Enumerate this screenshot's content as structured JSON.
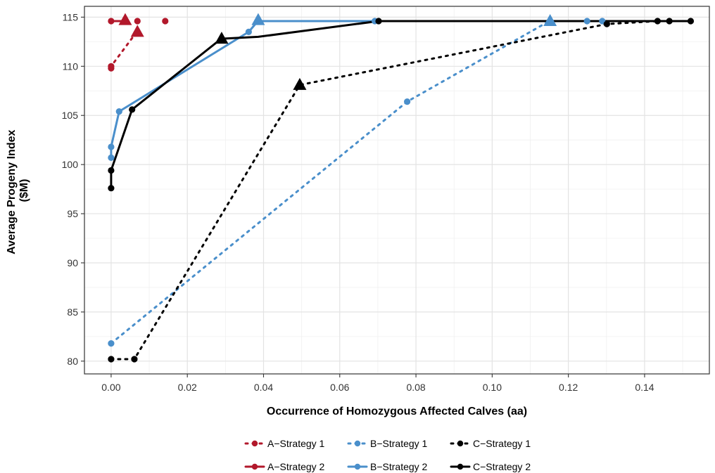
{
  "chart_data": {
    "type": "line",
    "xlabel": "Occurrence of Homozygous Affected Calves (aa)",
    "ylabel_line1": "Average Progeny Index",
    "ylabel_line2": "($M)",
    "xlim": [
      -0.007,
      0.157
    ],
    "ylim": [
      78.7,
      116.1
    ],
    "x_ticks": [
      0.0,
      0.02,
      0.04,
      0.06,
      0.08,
      0.1,
      0.12,
      0.14
    ],
    "x_tick_labels": [
      "0.00",
      "0.02",
      "0.04",
      "0.06",
      "0.08",
      "0.10",
      "0.12",
      "0.14"
    ],
    "y_ticks": [
      80,
      85,
      90,
      95,
      100,
      105,
      110,
      115
    ],
    "y_tick_labels": [
      "80",
      "85",
      "90",
      "95",
      "100",
      "105",
      "110",
      "115"
    ],
    "grid": true,
    "legend_position": "bottom",
    "series": [
      {
        "name": "A−Strategy 1",
        "color": "#b2182b",
        "dash": "dotted",
        "points": [
          [
            0.0,
            109.8
          ],
          [
            0.0,
            110.0
          ],
          [
            0.0038,
            114.6
          ],
          [
            0.0069,
            114.6
          ],
          [
            0.0142,
            114.6
          ]
        ],
        "path": [
          [
            0.0,
            109.8
          ],
          [
            0.0,
            110.0
          ],
          [
            0.0069,
            113.6
          ]
        ]
      },
      {
        "name": "A−Strategy 2",
        "color": "#b2182b",
        "dash": "solid",
        "points": [
          [
            0.0,
            114.6
          ],
          [
            0.0038,
            114.6
          ]
        ],
        "path": [
          [
            0.0,
            114.6
          ],
          [
            0.0038,
            114.6
          ]
        ]
      },
      {
        "name": "B−Strategy 1",
        "color": "#4a8fcb",
        "dash": "dotted",
        "points": [
          [
            0.0,
            81.8
          ],
          [
            0.0777,
            106.4
          ],
          [
            0.1249,
            114.6
          ],
          [
            0.1289,
            114.6
          ]
        ],
        "path": [
          [
            0.0,
            81.8
          ],
          [
            0.0777,
            106.4
          ],
          [
            0.115,
            114.6
          ],
          [
            0.1289,
            114.6
          ]
        ]
      },
      {
        "name": "B−Strategy 2",
        "color": "#4a8fcb",
        "dash": "solid",
        "points": [
          [
            0.0,
            100.7
          ],
          [
            0.0,
            101.8
          ],
          [
            0.0021,
            105.4
          ],
          [
            0.0361,
            113.5
          ],
          [
            0.0692,
            114.6
          ]
        ],
        "path": [
          [
            0.0,
            100.7
          ],
          [
            0.0,
            101.8
          ],
          [
            0.0021,
            105.4
          ],
          [
            0.0361,
            113.5
          ],
          [
            0.0385,
            114.6
          ],
          [
            0.0692,
            114.6
          ],
          [
            0.115,
            114.6
          ]
        ]
      },
      {
        "name": "C−Strategy 1",
        "color": "#000000",
        "dash": "dotted",
        "points": [
          [
            0.0,
            80.2
          ],
          [
            0.0061,
            80.2
          ],
          [
            0.1301,
            114.3
          ],
          [
            0.1434,
            114.6
          ],
          [
            0.1465,
            114.6
          ],
          [
            0.1521,
            114.6
          ]
        ],
        "path": [
          [
            0.0,
            80.2
          ],
          [
            0.0061,
            80.2
          ],
          [
            0.0495,
            108.1
          ],
          [
            0.1301,
            114.3
          ],
          [
            0.1434,
            114.6
          ],
          [
            0.1521,
            114.6
          ]
        ]
      },
      {
        "name": "C−Strategy 2",
        "color": "#000000",
        "dash": "solid",
        "points": [
          [
            0.0,
            97.6
          ],
          [
            0.0,
            99.4
          ],
          [
            0.0055,
            105.6
          ],
          [
            0.0702,
            114.6
          ]
        ],
        "path": [
          [
            0.0,
            97.6
          ],
          [
            0.0,
            99.4
          ],
          [
            0.0055,
            105.6
          ],
          [
            0.0289,
            112.8
          ],
          [
            0.0386,
            113.0
          ],
          [
            0.0702,
            114.6
          ],
          [
            0.1521,
            114.6
          ]
        ]
      }
    ],
    "triangles": [
      {
        "series": "A−Strategy 1",
        "x": 0.0069,
        "y": 113.5,
        "color": "#b2182b"
      },
      {
        "series": "A−Strategy 2",
        "x": 0.0037,
        "y": 114.7,
        "color": "#b2182b"
      },
      {
        "series": "B−Strategy 1",
        "x": 0.1152,
        "y": 114.6,
        "color": "#4a8fcb"
      },
      {
        "series": "B−Strategy 2",
        "x": 0.0386,
        "y": 114.7,
        "color": "#4a8fcb"
      },
      {
        "series": "C−Strategy 1",
        "x": 0.0495,
        "y": 108.1,
        "color": "#000000"
      },
      {
        "series": "C−Strategy 2",
        "x": 0.029,
        "y": 112.8,
        "color": "#000000"
      }
    ]
  }
}
